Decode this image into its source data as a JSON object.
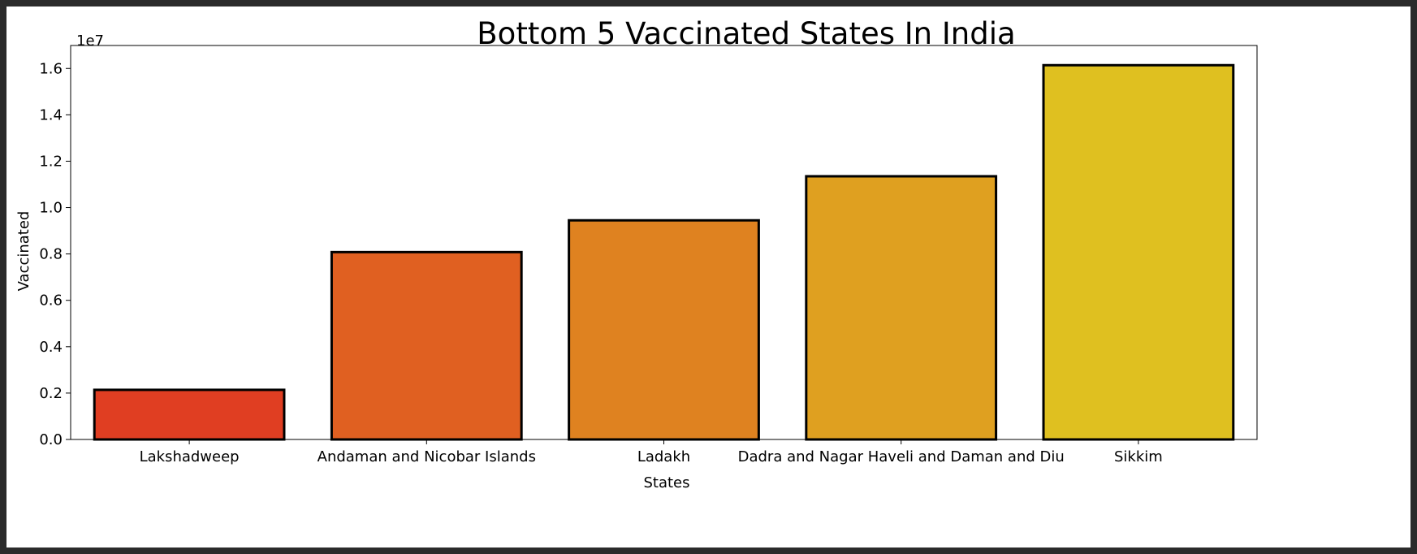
{
  "chart_data": {
    "type": "bar",
    "title": "Bottom 5 Vaccinated States In India",
    "xlabel": "States",
    "ylabel": "Vaccinated",
    "y_scale_label": "1e7",
    "categories": [
      "Lakshadweep",
      "Andaman and Nicobar Islands",
      "Ladakh",
      "Dadra and Nagar Haveli and Daman and Diu",
      "Sikkim"
    ],
    "values": [
      2140000,
      8080000,
      9450000,
      11350000,
      16140000
    ],
    "colors": [
      "#e03e22",
      "#e06021",
      "#df8220",
      "#dfa020",
      "#dfc020"
    ],
    "ylim": [
      0,
      16990000
    ],
    "yticks": [
      0,
      2000000,
      4000000,
      6000000,
      8000000,
      10000000,
      12000000,
      14000000,
      16000000
    ],
    "ytick_labels": [
      "0.0",
      "0.2",
      "0.4",
      "0.6",
      "0.8",
      "1.0",
      "1.2",
      "1.4",
      "1.6"
    ],
    "grid": false,
    "legend": false
  }
}
